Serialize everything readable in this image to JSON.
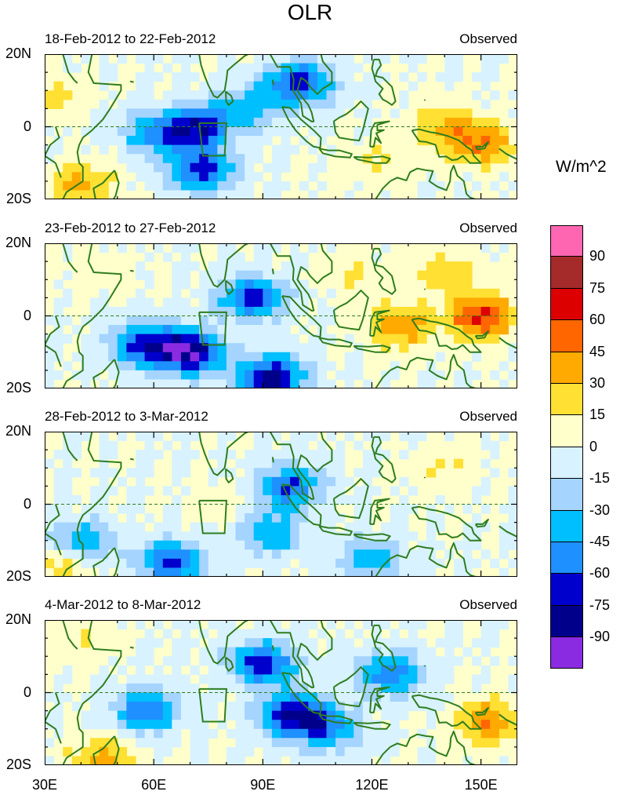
{
  "title": "OLR",
  "units": "W/m^2",
  "colors": {
    "coast": "#2e7d1e",
    "palette": [
      "#8a2be2",
      "#00008b",
      "#0000cd",
      "#1e90ff",
      "#00bfff",
      "#a4d4ff",
      "#d8f2ff",
      "#ffffcc",
      "#ffe033",
      "#ffaa00",
      "#ff6600",
      "#dd0000",
      "#a52a2a",
      "#ff66b2"
    ]
  },
  "colorbar_labels": [
    "90",
    "75",
    "60",
    "45",
    "30",
    "15",
    "0",
    "-15",
    "-30",
    "-45",
    "-60",
    "-75",
    "-90"
  ],
  "lat_labels": [
    "20N",
    "0",
    "20S"
  ],
  "lon_labels": [
    "30E",
    "60E",
    "90E",
    "120E",
    "150E"
  ],
  "chart_data": {
    "type": "heatmap",
    "variable": "OLR anomaly",
    "units": "W/m^2",
    "x_range": [
      30,
      160
    ],
    "y_range": [
      -20,
      20
    ],
    "levels": [
      -90,
      -75,
      -60,
      -45,
      -30,
      -15,
      0,
      15,
      30,
      45,
      60,
      75,
      90
    ],
    "panels": [
      {
        "title": "18-Feb-2012 to 22-Feb-2012",
        "label": "Observed",
        "features": [
          {
            "lon": 72,
            "lat": 0,
            "value": -70
          },
          {
            "lon": 73,
            "lat": -12,
            "value": -65
          },
          {
            "lon": 60,
            "lat": -2,
            "value": -45
          },
          {
            "lon": 100,
            "lat": 12,
            "value": -70
          },
          {
            "lon": 86,
            "lat": 5,
            "value": -35
          },
          {
            "lon": 150,
            "lat": -5,
            "value": 45
          },
          {
            "lon": 140,
            "lat": 0,
            "value": 30
          },
          {
            "lon": 40,
            "lat": -16,
            "value": 35
          },
          {
            "lon": 32,
            "lat": 8,
            "value": 20
          },
          {
            "lon": 122,
            "lat": -10,
            "value": 15
          }
        ]
      },
      {
        "title": "23-Feb-2012 to 27-Feb-2012",
        "label": "Observed",
        "features": [
          {
            "lon": 70,
            "lat": -10,
            "value": -90
          },
          {
            "lon": 57,
            "lat": -8,
            "value": -65
          },
          {
            "lon": 87,
            "lat": 5,
            "value": -65
          },
          {
            "lon": 92,
            "lat": -17,
            "value": -85
          },
          {
            "lon": 150,
            "lat": 0,
            "value": 65
          },
          {
            "lon": 128,
            "lat": -3,
            "value": 40
          },
          {
            "lon": 140,
            "lat": 12,
            "value": 25
          },
          {
            "lon": 115,
            "lat": 12,
            "value": 15
          },
          {
            "lon": 45,
            "lat": 12,
            "value": 10
          }
        ]
      },
      {
        "title": "28-Feb-2012 to 3-Mar-2012",
        "label": "Observed",
        "features": [
          {
            "lon": 97,
            "lat": 5,
            "value": -60
          },
          {
            "lon": 92,
            "lat": -8,
            "value": -45
          },
          {
            "lon": 65,
            "lat": -16,
            "value": -65
          },
          {
            "lon": 40,
            "lat": -10,
            "value": -45
          },
          {
            "lon": 120,
            "lat": -15,
            "value": -40
          },
          {
            "lon": 140,
            "lat": 10,
            "value": 15
          },
          {
            "lon": 80,
            "lat": 0,
            "value": 10
          },
          {
            "lon": 34,
            "lat": -16,
            "value": 25
          }
        ]
      },
      {
        "title": "4-Mar-2012 to 8-Mar-2012",
        "label": "Observed",
        "features": [
          {
            "lon": 90,
            "lat": 8,
            "value": -70
          },
          {
            "lon": 98,
            "lat": -6,
            "value": -75
          },
          {
            "lon": 58,
            "lat": -5,
            "value": -60
          },
          {
            "lon": 125,
            "lat": 5,
            "value": -55
          },
          {
            "lon": 108,
            "lat": -10,
            "value": -50
          },
          {
            "lon": 152,
            "lat": -8,
            "value": 45
          },
          {
            "lon": 46,
            "lat": -18,
            "value": 35
          },
          {
            "lon": 40,
            "lat": 14,
            "value": 15
          }
        ]
      }
    ]
  }
}
